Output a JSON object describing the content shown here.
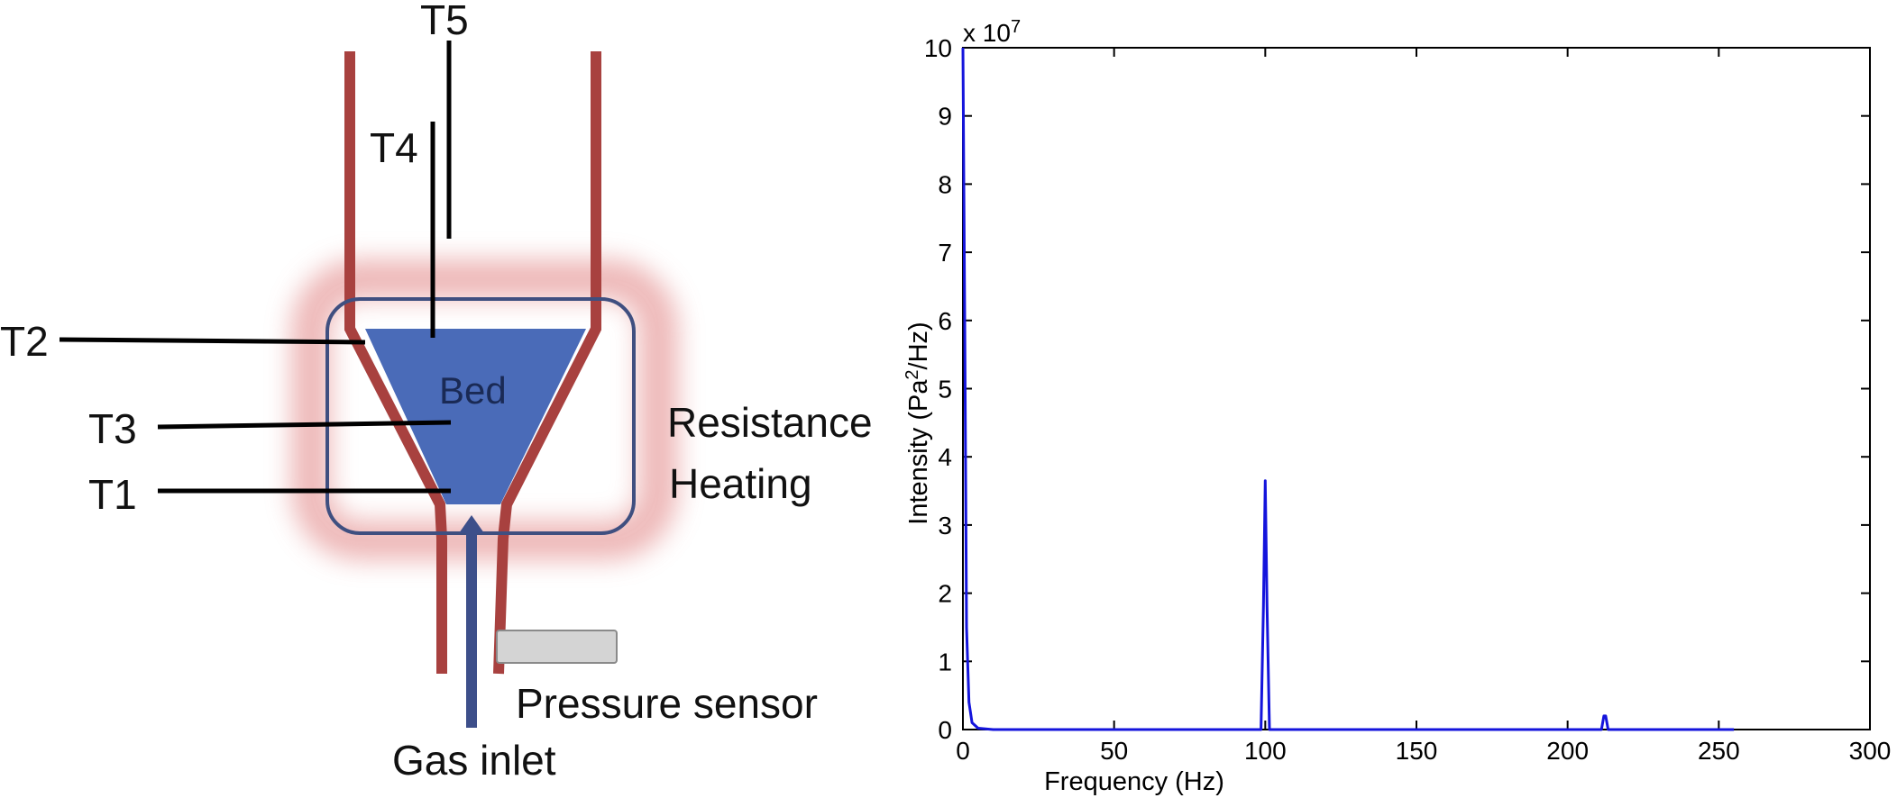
{
  "diagram": {
    "labels": {
      "t1": "T1",
      "t2": "T2",
      "t3": "T3",
      "t4": "T4",
      "t5": "T5",
      "bed": "Bed",
      "heating_line1": "Resistance",
      "heating_line2": "Heating",
      "pressure_sensor": "Pressure sensor",
      "gas_inlet": "Gas inlet"
    },
    "colors": {
      "wall": "#a8413f",
      "bed_fill": "#4a6bb8",
      "heater_outline": "#3f4f80",
      "heater_glow": "#e8a0a0",
      "gas_arrow": "#3d4f8a",
      "sensor_fill": "#d4d4d4"
    }
  },
  "chart_data": {
    "type": "line",
    "title": "",
    "xlabel": "Frequency (Hz)",
    "ylabel_main": "Intensity  (Pa",
    "ylabel_sup": "2",
    "ylabel_tail": "/Hz)",
    "multiplier_base": "x 10",
    "multiplier_exp": "7",
    "xlim": [
      0,
      300
    ],
    "ylim": [
      0,
      10
    ],
    "xticks": [
      0,
      50,
      100,
      150,
      200,
      250,
      300
    ],
    "yticks": [
      0,
      1,
      2,
      3,
      4,
      5,
      6,
      7,
      8,
      9,
      10
    ],
    "grid": false,
    "legend": "none",
    "series": [
      {
        "color": "#1414dc",
        "x": [
          0,
          0.6,
          1.2,
          2,
          3,
          5,
          10,
          50,
          98.6,
          99.4,
          100,
          100.6,
          101.4,
          150,
          211.2,
          212,
          212.6,
          213.4,
          250,
          255
        ],
        "y": [
          10,
          6,
          1.5,
          0.4,
          0.1,
          0.02,
          0,
          0,
          0,
          1.8,
          3.65,
          1.8,
          0,
          0,
          0,
          0.2,
          0.2,
          0,
          0,
          0
        ]
      }
    ]
  }
}
